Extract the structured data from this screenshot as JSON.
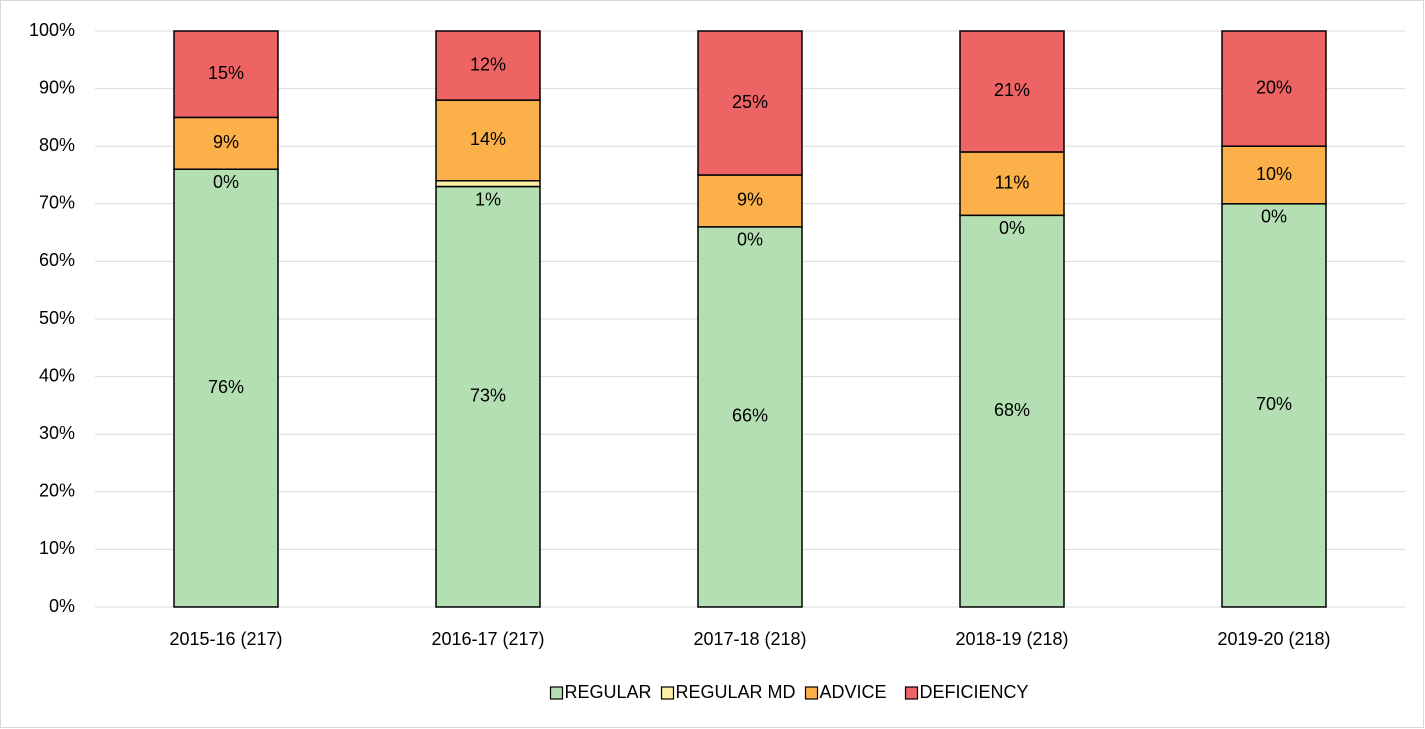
{
  "chart_data": {
    "type": "stacked_bar",
    "categories": [
      "2015-16 (217)",
      "2016-17 (217)",
      "2017-18 (218)",
      "2018-19 (218)",
      "2019-20 (218)"
    ],
    "series": [
      {
        "name": "REGULAR",
        "color": "#b3dfb3",
        "values": [
          76,
          73,
          66,
          68,
          70
        ],
        "value_labels": [
          "76%",
          "73%",
          "66%",
          "68%",
          "70%"
        ]
      },
      {
        "name": "REGULAR MD",
        "color": "#fbf0a3",
        "values": [
          0,
          1,
          0,
          0,
          0
        ],
        "value_labels": [
          "0%",
          "1%",
          "0%",
          "0%",
          "0%"
        ]
      },
      {
        "name": "ADVICE",
        "color": "#fbb04a",
        "values": [
          9,
          14,
          9,
          11,
          10
        ],
        "value_labels": [
          "9%",
          "14%",
          "9%",
          "11%",
          "10%"
        ]
      },
      {
        "name": "DEFICIENCY",
        "color": "#ee6464",
        "values": [
          15,
          12,
          25,
          21,
          20
        ],
        "value_labels": [
          "15%",
          "12%",
          "25%",
          "21%",
          "20%"
        ]
      }
    ],
    "ylim": [
      0,
      100
    ],
    "yticks": [
      {
        "value": 0,
        "label": "0%"
      },
      {
        "value": 10,
        "label": "10%"
      },
      {
        "value": 20,
        "label": "20%"
      },
      {
        "value": 30,
        "label": "30%"
      },
      {
        "value": 40,
        "label": "40%"
      },
      {
        "value": 50,
        "label": "50%"
      },
      {
        "value": 60,
        "label": "60%"
      },
      {
        "value": 70,
        "label": "70%"
      },
      {
        "value": 80,
        "label": "80%"
      },
      {
        "value": 90,
        "label": "90%"
      },
      {
        "value": 100,
        "label": "100%"
      }
    ],
    "grid": true,
    "legend": "bottom"
  }
}
